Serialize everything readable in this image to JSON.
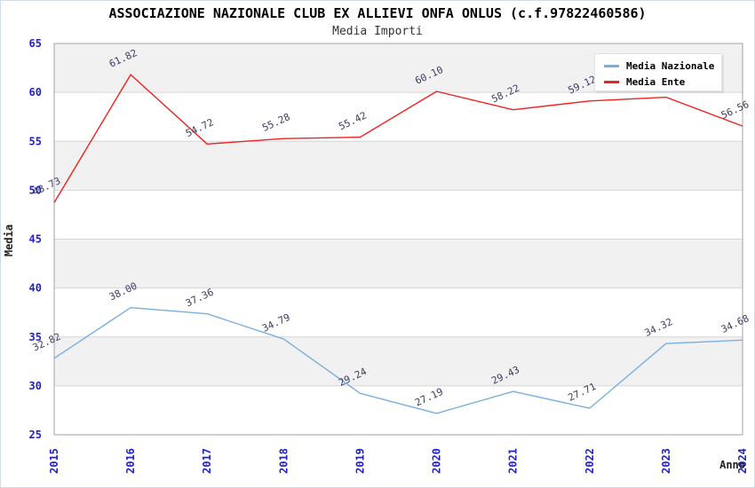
{
  "title": "ASSOCIAZIONE NAZIONALE CLUB EX ALLIEVI ONFA ONLUS (c.f.97822460586)",
  "subtitle": "Media Importi",
  "chart_data": {
    "type": "line",
    "x": [
      "2015",
      "2016",
      "2017",
      "2018",
      "2019",
      "2020",
      "2021",
      "2022",
      "2023",
      "2024"
    ],
    "xlabel": "Anno",
    "ylabel": "Media",
    "ylim": [
      25,
      65
    ],
    "ytick_step": 5,
    "grid": true,
    "alternating_bands": true,
    "legend_position": "top-right",
    "point_labels": "two-decimals",
    "series": [
      {
        "name": "Media Nazionale",
        "color": "#79afe0",
        "values": [
          32.82,
          38.0,
          37.36,
          34.79,
          29.24,
          27.19,
          29.43,
          27.71,
          34.32,
          34.68
        ]
      },
      {
        "name": "Media Ente",
        "color": "#ee2222",
        "values": [
          48.73,
          61.82,
          54.72,
          55.28,
          55.42,
          60.1,
          58.22,
          59.12,
          59.5,
          56.56
        ]
      }
    ]
  },
  "colors": {
    "tick_label": "#2121cc",
    "point_label": "#3b3b63",
    "band_gray": "#f1f1f1",
    "band_white": "#ffffff",
    "gridline": "#d6d6d6",
    "plot_border": "#a3a3a3",
    "axis_title": "#222222",
    "title": "#000000",
    "subtitle": "#333333"
  }
}
